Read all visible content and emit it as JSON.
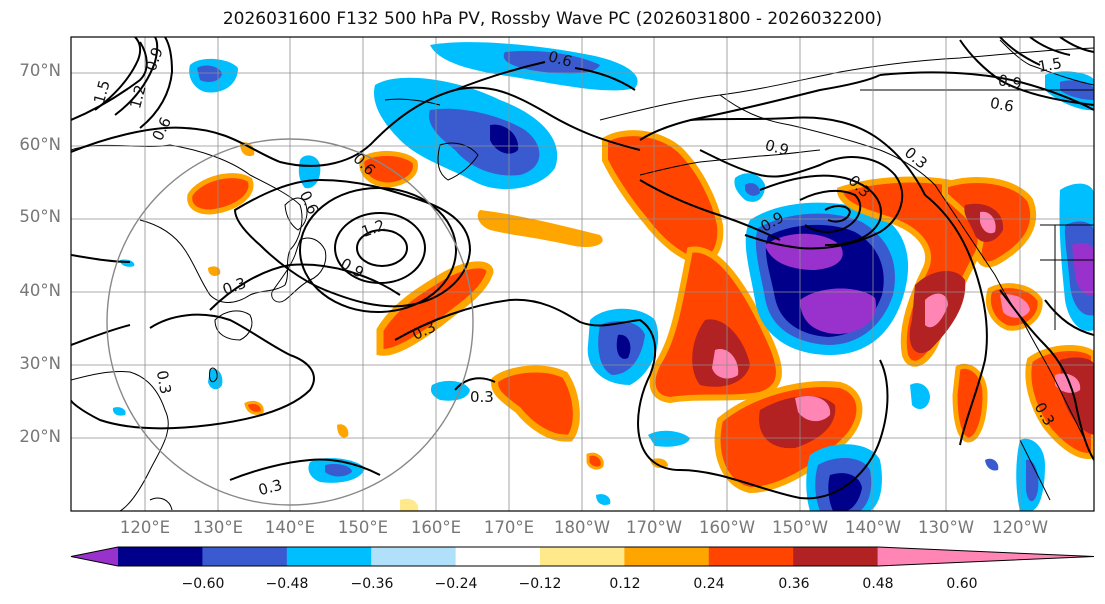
{
  "title": "2026031600 F132 500 hPa PV, Rossby Wave PC (2026031800 - 2026032200)",
  "latitude_labels": [
    "70°N",
    "60°N",
    "50°N",
    "40°N",
    "30°N",
    "20°N"
  ],
  "longitude_labels": [
    "120°E",
    "130°E",
    "140°E",
    "150°E",
    "160°E",
    "170°E",
    "180°W",
    "170°W",
    "160°W",
    "150°W",
    "140°W",
    "130°W",
    "120°W"
  ],
  "colorbar": {
    "ticks": [
      "−0.60",
      "−0.48",
      "−0.36",
      "−0.24",
      "−0.12",
      "0.12",
      "0.24",
      "0.36",
      "0.48",
      "0.60"
    ],
    "colors": [
      "#9932cc",
      "#00008b",
      "#3a5bcf",
      "#00bfff",
      "#b0e0fa",
      "#ffffff",
      "#ffe98a",
      "#ffa500",
      "#ff4500",
      "#b22222",
      "#ff85b5"
    ]
  },
  "contour_labels": [
    "0.6",
    "1.2",
    "1.5",
    "0.9",
    "0.6",
    "0.6",
    "0.6",
    "1.2",
    "0.9",
    "0.3",
    "0.3",
    "0.3",
    "0.3",
    "0.3",
    "0.3",
    "0.9",
    "0.6",
    "0.9",
    "0.3",
    "0.3",
    "0.9",
    "1.5"
  ]
}
